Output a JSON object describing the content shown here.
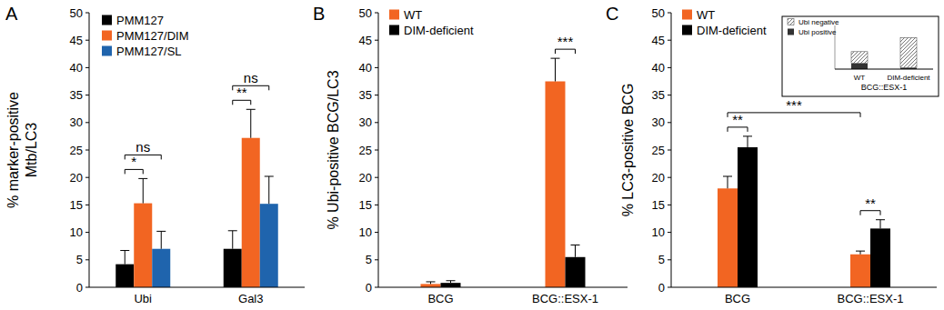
{
  "chart_data": [
    {
      "type": "bar",
      "title": "A",
      "ylabel": [
        "% marker-positive",
        "Mtb/LC3"
      ],
      "categories": [
        "Ubi",
        "Gal3"
      ],
      "series": [
        {
          "name": "PMM127",
          "color": "#000000",
          "values": [
            4.2,
            7.0
          ],
          "errors": [
            2.5,
            3.3
          ]
        },
        {
          "name": "PMM127/DIM",
          "color": "#f26522",
          "values": [
            15.3,
            27.2
          ],
          "errors": [
            4.5,
            5.2
          ]
        },
        {
          "name": "PMM127/SL",
          "color": "#1f64ad",
          "values": [
            7.0,
            15.2
          ],
          "errors": [
            3.2,
            5.0
          ]
        }
      ],
      "ylim": [
        0,
        50
      ],
      "yticks": [
        0,
        5,
        10,
        15,
        20,
        25,
        30,
        35,
        40,
        45,
        50
      ],
      "legend": "top-left",
      "annotations": [
        {
          "text": "*",
          "between": [
            [
              0,
              0
            ],
            [
              0,
              1
            ]
          ]
        },
        {
          "text": "ns",
          "between": [
            [
              0,
              0
            ],
            [
              0,
              2
            ]
          ]
        },
        {
          "text": "**",
          "between": [
            [
              1,
              0
            ],
            [
              1,
              1
            ]
          ]
        },
        {
          "text": "ns",
          "between": [
            [
              1,
              0
            ],
            [
              1,
              2
            ]
          ]
        }
      ]
    },
    {
      "type": "bar",
      "title": "B",
      "ylabel": [
        "% Ubi-positive BCG/LC3"
      ],
      "categories": [
        "BCG",
        "BCG::ESX-1"
      ],
      "series": [
        {
          "name": "WT",
          "color": "#f26522",
          "values": [
            0.6,
            37.5
          ],
          "errors": [
            0.4,
            4.2
          ]
        },
        {
          "name": "DIM-deficient",
          "color": "#000000",
          "values": [
            0.8,
            5.5
          ],
          "errors": [
            0.4,
            2.2
          ]
        }
      ],
      "ylim": [
        0,
        50
      ],
      "yticks": [
        0,
        5,
        10,
        15,
        20,
        25,
        30,
        35,
        40,
        45,
        50
      ],
      "legend": "top-left",
      "annotations": [
        {
          "text": "***",
          "between": [
            [
              1,
              0
            ],
            [
              1,
              1
            ]
          ]
        }
      ]
    },
    {
      "type": "bar",
      "title": "C",
      "ylabel": [
        "% LC3-positive BCG"
      ],
      "categories": [
        "BCG",
        "BCG::ESX-1"
      ],
      "series": [
        {
          "name": "WT",
          "color": "#f26522",
          "values": [
            18.0,
            6.0
          ],
          "errors": [
            2.2,
            0.6
          ]
        },
        {
          "name": "DIM-deficient",
          "color": "#000000",
          "values": [
            25.5,
            10.7
          ],
          "errors": [
            2.0,
            1.6
          ]
        }
      ],
      "ylim": [
        0,
        50
      ],
      "yticks": [
        0,
        5,
        10,
        15,
        20,
        25,
        30,
        35,
        40,
        45,
        50
      ],
      "legend": "top-left",
      "annotations": [
        {
          "text": "**",
          "between": [
            [
              0,
              0
            ],
            [
              0,
              1
            ]
          ]
        },
        {
          "text": "**",
          "between": [
            [
              1,
              0
            ],
            [
              1,
              1
            ]
          ]
        },
        {
          "text": "***",
          "between": [
            [
              0,
              0
            ],
            [
              1,
              0
            ]
          ]
        }
      ]
    },
    {
      "type": "bar",
      "stacked": true,
      "xlabel": "BCG::ESX-1",
      "categories": [
        "WT",
        "DIM-deficient"
      ],
      "series": [
        {
          "name": "Ubi positive",
          "color": "#333333",
          "line_style": "solid",
          "values": [
            2.0,
            0.5
          ]
        },
        {
          "name": "Ubi negative",
          "color": "#777777",
          "line_style": "hatched",
          "values": [
            4.0,
            10.3
          ]
        }
      ],
      "ylim": [
        0,
        15
      ],
      "tick_labels": "x",
      "legend": "top-left"
    }
  ]
}
